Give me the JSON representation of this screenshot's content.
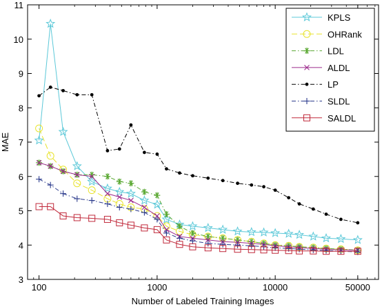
{
  "chart_data": {
    "type": "line",
    "xlabel": "Number of Labeled Training Images",
    "ylabel": "MAE",
    "xscale": "log",
    "xlim": [
      80,
      75000
    ],
    "ylim": [
      3,
      11
    ],
    "xticks": [
      100,
      1000,
      10000,
      50000
    ],
    "xtick_labels": [
      "100",
      "1000",
      "10000",
      "50000"
    ],
    "yticks": [
      3,
      4,
      5,
      6,
      7,
      8,
      9,
      10,
      11
    ],
    "ytick_labels": [
      "3",
      "4",
      "5",
      "6",
      "7",
      "8",
      "9",
      "10",
      "11"
    ],
    "legend_position": "top-right",
    "grid": false,
    "series": [
      {
        "name": "KPLS",
        "color": "#5bc8d8",
        "marker": "star",
        "dash": "",
        "x": [
          100,
          125,
          160,
          210,
          280,
          380,
          480,
          600,
          780,
          1000,
          1200,
          1550,
          2000,
          2700,
          3600,
          4800,
          6300,
          8000,
          10000,
          13000,
          16000,
          21000,
          27000,
          36000,
          50000
        ],
        "y": [
          7.05,
          10.45,
          7.3,
          6.3,
          5.85,
          5.65,
          5.55,
          5.5,
          5.3,
          5.18,
          4.75,
          4.6,
          4.55,
          4.5,
          4.45,
          4.4,
          4.38,
          4.37,
          4.35,
          4.33,
          4.3,
          4.25,
          4.2,
          4.18,
          4.15
        ]
      },
      {
        "name": "OHRank",
        "color": "#e8e32c",
        "marker": "circle",
        "dash": "8 4",
        "x": [
          100,
          125,
          160,
          210,
          280,
          380,
          480,
          600,
          780,
          1000,
          1200,
          1550,
          2000,
          2700,
          3600,
          4800,
          6300,
          8000,
          10000,
          13000,
          16000,
          21000,
          27000,
          36000,
          50000
        ],
        "y": [
          7.4,
          6.6,
          6.2,
          5.8,
          5.6,
          5.35,
          5.2,
          5.1,
          5.05,
          4.85,
          4.55,
          4.4,
          4.3,
          4.25,
          4.2,
          4.15,
          4.1,
          4.05,
          4.0,
          3.98,
          3.95,
          3.93,
          3.9,
          3.88,
          3.85
        ]
      },
      {
        "name": "LDL",
        "color": "#5aa832",
        "marker": "asterisk",
        "dash": "6 3 1.5 3",
        "x": [
          100,
          125,
          160,
          210,
          280,
          380,
          480,
          600,
          780,
          1000,
          1200,
          1550,
          2000,
          2700,
          3600,
          4800,
          6300,
          8000,
          10000,
          13000,
          16000,
          21000,
          27000,
          36000,
          50000
        ],
        "y": [
          6.4,
          6.3,
          6.15,
          6.05,
          6.05,
          6.0,
          5.85,
          5.8,
          5.55,
          5.45,
          4.9,
          4.55,
          4.35,
          4.25,
          4.2,
          4.15,
          4.1,
          4.05,
          4.0,
          3.98,
          3.95,
          3.93,
          3.9,
          3.88,
          3.85
        ]
      },
      {
        "name": "ALDL",
        "color": "#9c2a8c",
        "marker": "x",
        "dash": "",
        "x": [
          100,
          125,
          160,
          210,
          280,
          380,
          480,
          600,
          780,
          1000,
          1200,
          1550,
          2000,
          2700,
          3600,
          4800,
          6300,
          8000,
          10000,
          13000,
          16000,
          21000,
          27000,
          36000,
          50000
        ],
        "y": [
          6.4,
          6.3,
          6.15,
          6.05,
          6.0,
          5.5,
          5.4,
          5.3,
          5.1,
          4.85,
          4.45,
          4.25,
          4.2,
          4.15,
          4.1,
          4.08,
          4.05,
          4.02,
          3.98,
          3.95,
          3.93,
          3.9,
          3.88,
          3.86,
          3.85
        ]
      },
      {
        "name": "LP",
        "color": "#000000",
        "marker": "dot",
        "dash": "6 3 1.5 3",
        "x": [
          100,
          125,
          160,
          210,
          280,
          380,
          480,
          600,
          780,
          1000,
          1200,
          1550,
          2000,
          2700,
          3600,
          4800,
          6300,
          8000,
          10000,
          13000,
          16000,
          21000,
          27000,
          36000,
          50000
        ],
        "y": [
          8.35,
          8.6,
          8.5,
          8.38,
          8.38,
          6.75,
          6.8,
          7.5,
          6.7,
          6.65,
          6.22,
          6.1,
          6.02,
          5.95,
          5.88,
          5.8,
          5.75,
          5.7,
          5.6,
          5.38,
          5.2,
          5.05,
          4.9,
          4.75,
          4.65
        ]
      },
      {
        "name": "SLDL",
        "color": "#2b3a8c",
        "marker": "plus",
        "dash": "6 3 1.5 3",
        "x": [
          100,
          125,
          160,
          210,
          280,
          380,
          480,
          600,
          780,
          1000,
          1200,
          1550,
          2000,
          2700,
          3600,
          4800,
          6300,
          8000,
          10000,
          13000,
          16000,
          21000,
          27000,
          36000,
          50000
        ],
        "y": [
          5.92,
          5.75,
          5.5,
          5.35,
          5.3,
          5.2,
          5.1,
          5.05,
          4.95,
          4.75,
          4.35,
          4.2,
          4.12,
          4.05,
          4.02,
          4.0,
          3.98,
          3.95,
          3.92,
          3.9,
          3.88,
          3.86,
          3.84,
          3.82,
          3.8
        ]
      },
      {
        "name": "SALDL",
        "color": "#c0283a",
        "marker": "square",
        "dash": "",
        "x": [
          100,
          125,
          160,
          210,
          280,
          380,
          480,
          600,
          780,
          1000,
          1200,
          1550,
          2000,
          2700,
          3600,
          4800,
          6300,
          8000,
          10000,
          13000,
          16000,
          21000,
          27000,
          36000,
          50000
        ],
        "y": [
          5.12,
          5.12,
          4.85,
          4.8,
          4.78,
          4.75,
          4.65,
          4.58,
          4.5,
          4.45,
          4.15,
          4.02,
          3.95,
          3.92,
          3.9,
          3.88,
          3.87,
          3.86,
          3.85,
          3.84,
          3.83,
          3.83,
          3.82,
          3.82,
          3.82
        ]
      }
    ]
  }
}
